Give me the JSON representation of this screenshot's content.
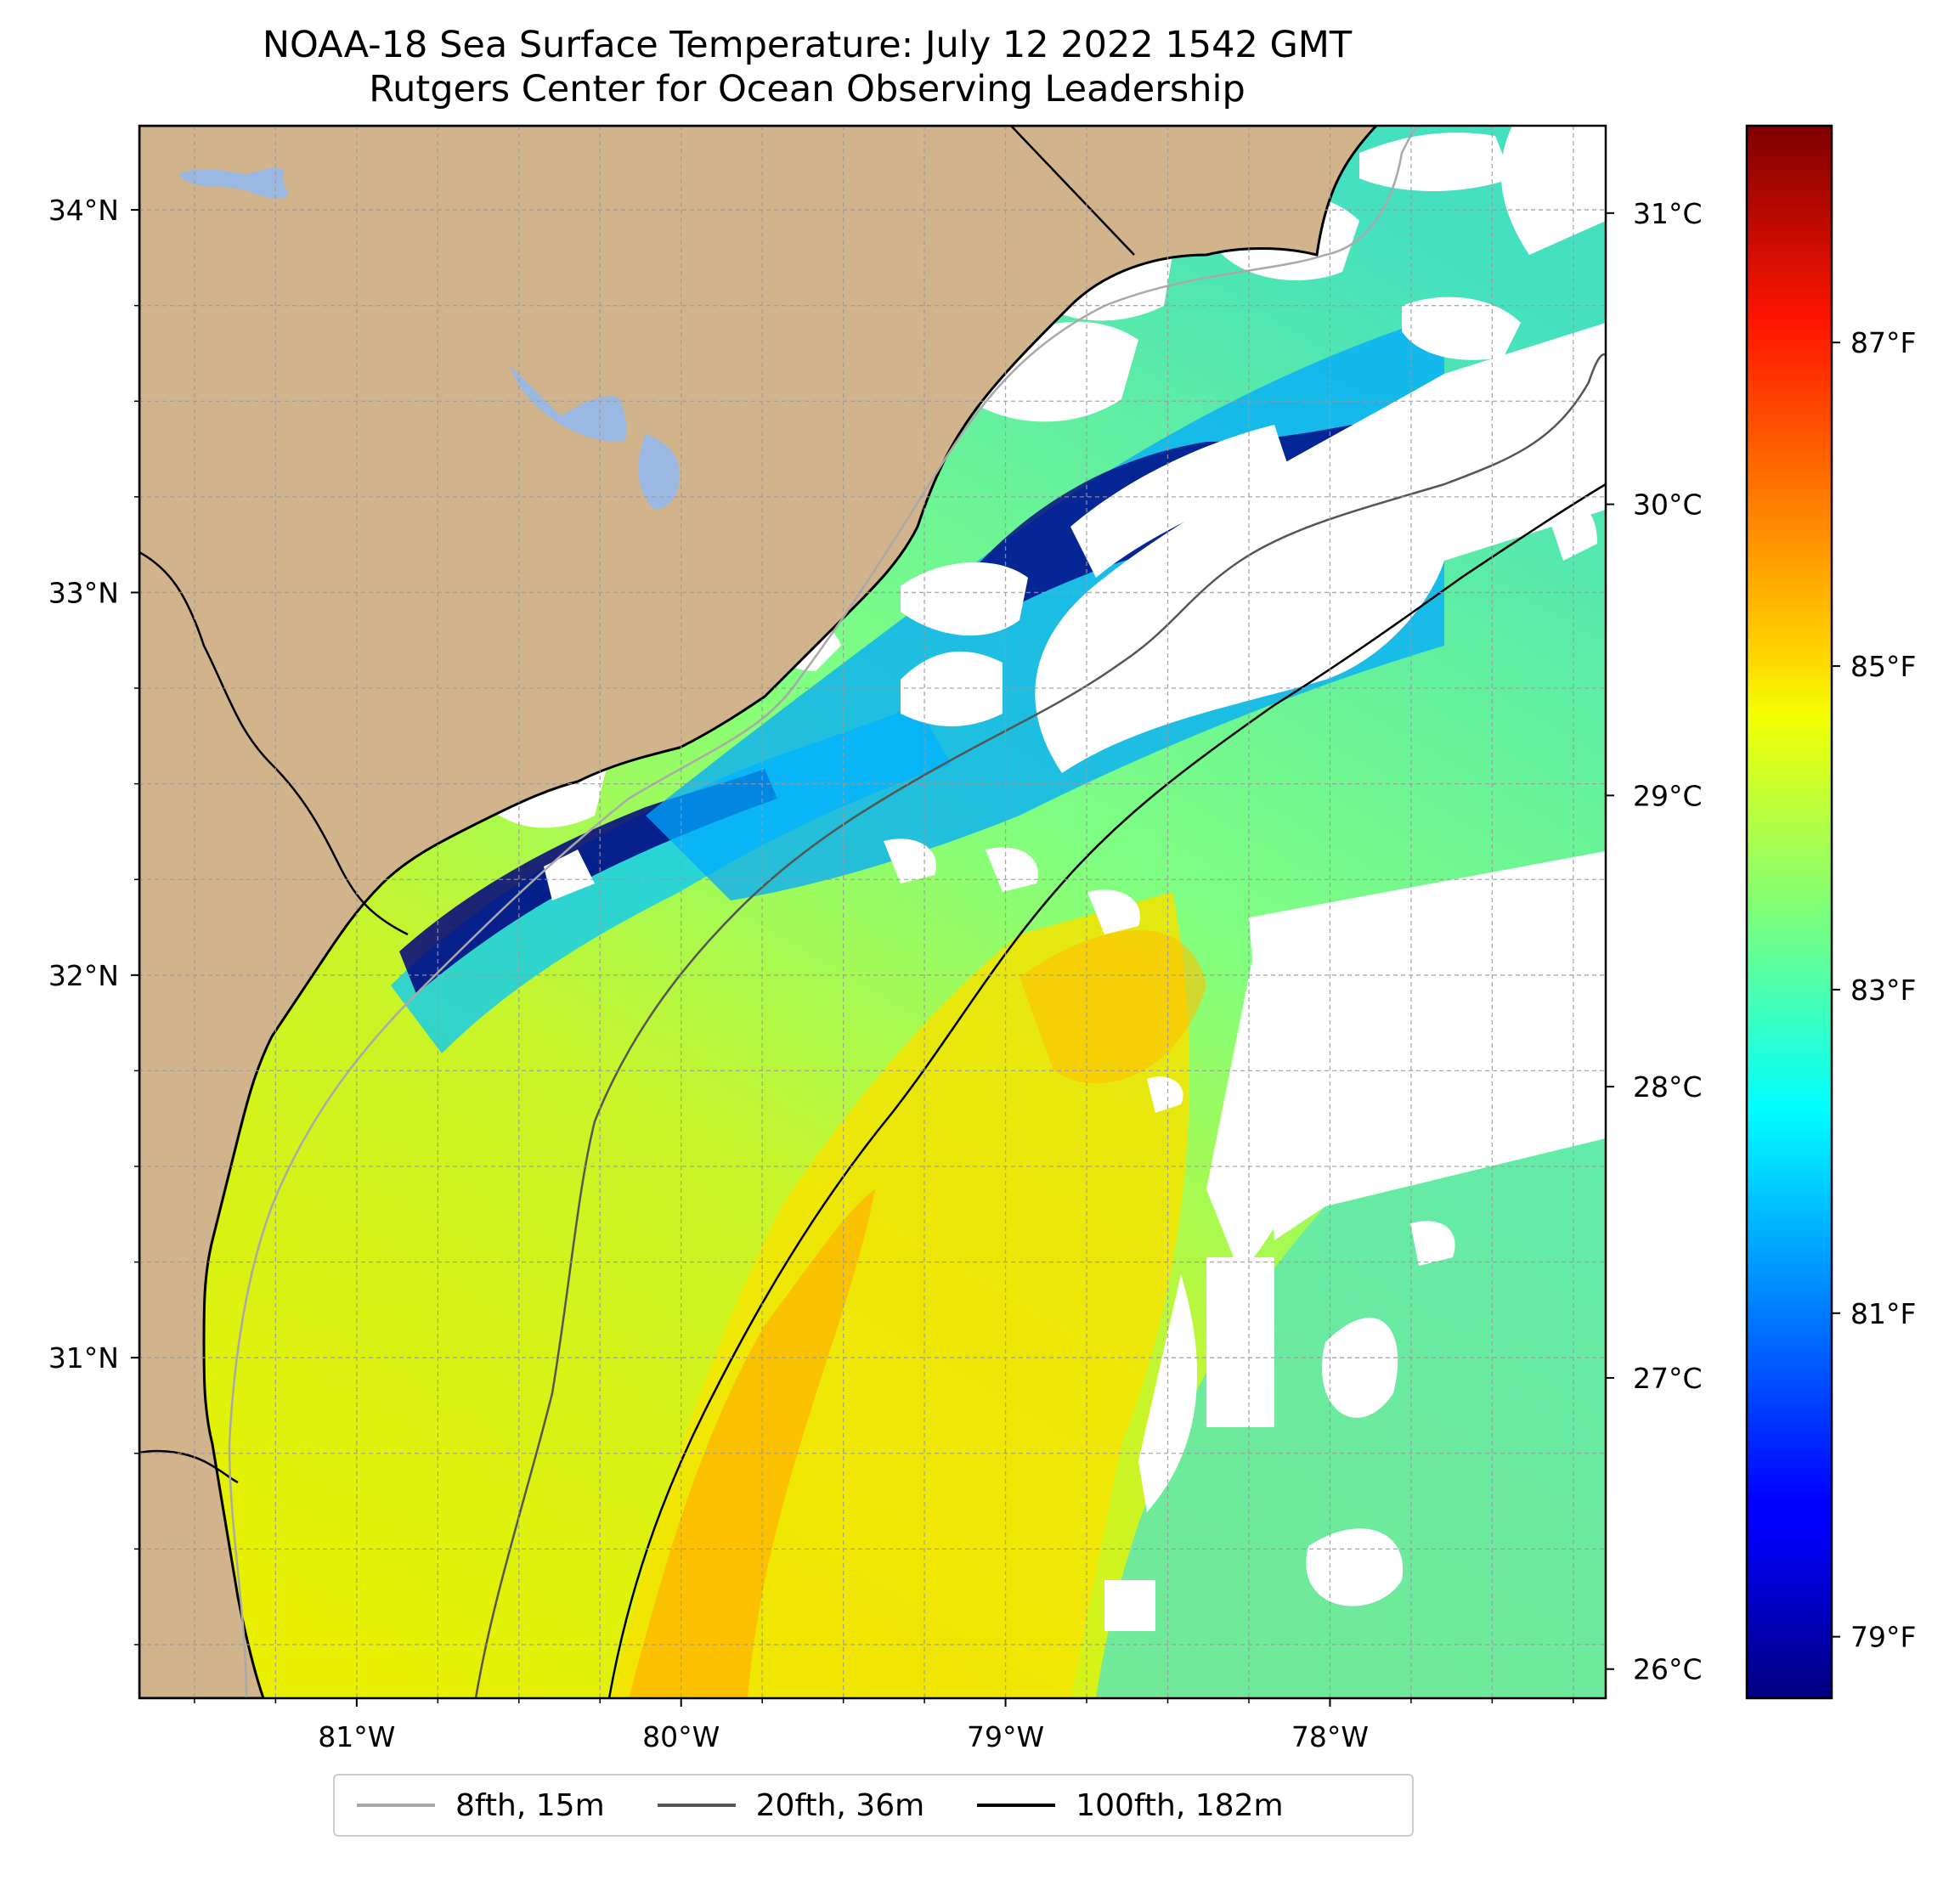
{
  "title": {
    "line1": "NOAA-18 Sea Surface Temperature: July 12 2022 1542 GMT",
    "line2": "Rutgers Center for Ocean Observing Leadership"
  },
  "map": {
    "lat_labels": [
      "34°N",
      "33°N",
      "32°N",
      "31°N"
    ],
    "lon_labels": [
      "81°W",
      "80°W",
      "79°W",
      "78°W"
    ],
    "lat_values": [
      34,
      33,
      32,
      31
    ],
    "lon_values": [
      -81,
      -80,
      -79,
      -78
    ],
    "extent": {
      "lon_min": -81.67,
      "lon_max": -77.15,
      "lat_min": 30.11,
      "lat_max": 34.22
    },
    "colors": {
      "land": "#d2b48c",
      "lakes": "#9ab8e2",
      "coastline": "#000000",
      "cloud": "#ffffff"
    }
  },
  "colorbar": {
    "colormap": "jet",
    "celsius_labels": [
      "31°C",
      "30°C",
      "29°C",
      "28°C",
      "27°C",
      "26°C"
    ],
    "celsius_values": [
      31,
      30,
      29,
      28,
      27,
      26
    ],
    "fahrenheit_labels": [
      "87°F",
      "85°F",
      "83°F",
      "81°F",
      "79°F"
    ],
    "fahrenheit_values": [
      87,
      85,
      83,
      81,
      79
    ],
    "range_celsius": [
      25.9,
      31.3
    ]
  },
  "legend": {
    "items": [
      {
        "label": "8fth, 15m",
        "color": "#a9a9a9"
      },
      {
        "label": "20fth, 36m",
        "color": "#555555"
      },
      {
        "label": "100fth, 182m",
        "color": "#000000"
      }
    ]
  }
}
